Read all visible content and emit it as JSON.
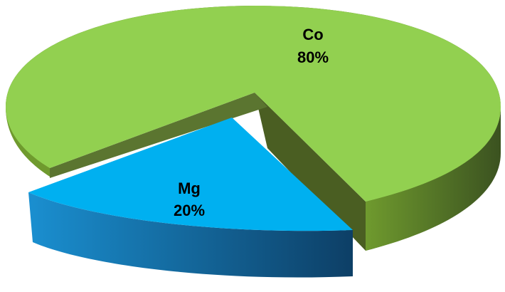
{
  "chart_data": {
    "type": "pie",
    "style": "3d-exploded",
    "title": "",
    "slices": [
      {
        "label": "Co",
        "value": 80,
        "value_label": "80%",
        "color": "#92d050",
        "side_color": "#4f6228"
      },
      {
        "label": "Mg",
        "value": 20,
        "value_label": "20%",
        "color": "#00b0f0",
        "side_color": "#1f4e79"
      }
    ]
  }
}
